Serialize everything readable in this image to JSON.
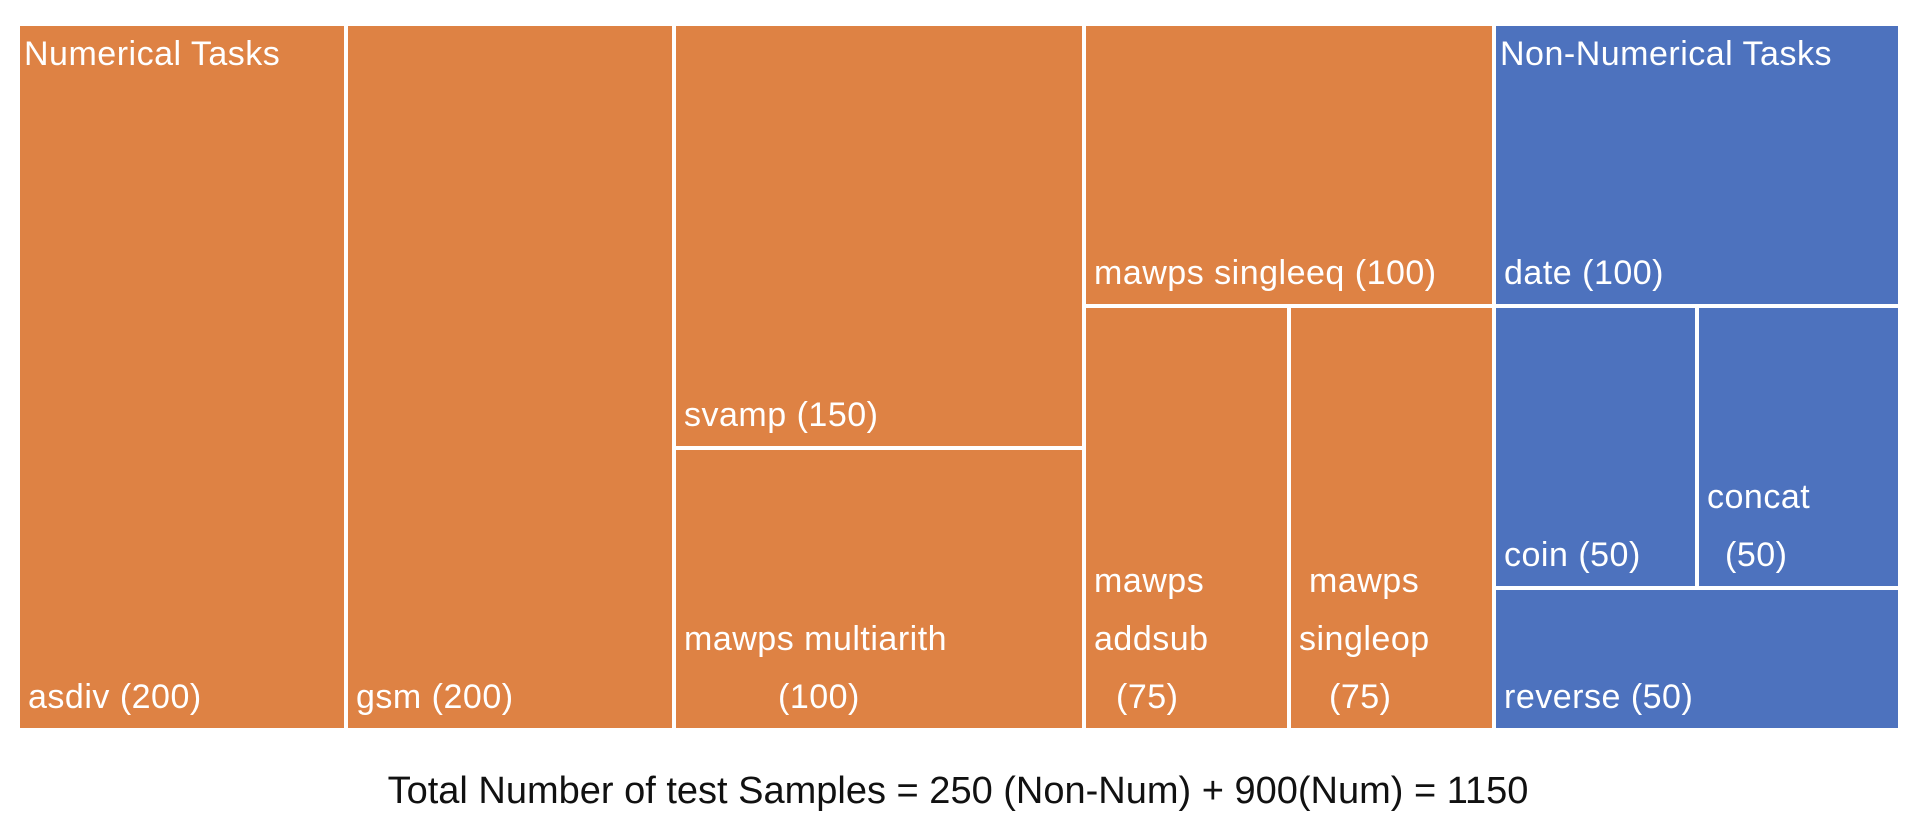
{
  "chart_data": {
    "type": "treemap",
    "groups": [
      {
        "name": "Numerical Tasks",
        "color": "#DE8244",
        "items": [
          "asdiv",
          "gsm",
          "svamp",
          "mawps multiarith",
          "mawps singleeq",
          "mawps addsub",
          "mawps singleop"
        ]
      },
      {
        "name": "Non-Numerical Tasks",
        "color": "#4D72BE",
        "items": [
          "date",
          "coin",
          "concat",
          "reverse"
        ]
      }
    ],
    "items": [
      {
        "name": "asdiv",
        "value": 200,
        "group": "Numerical Tasks",
        "label": [
          "asdiv (200)"
        ]
      },
      {
        "name": "gsm",
        "value": 200,
        "group": "Numerical Tasks",
        "label": [
          "gsm (200)"
        ]
      },
      {
        "name": "svamp",
        "value": 150,
        "group": "Numerical Tasks",
        "label": [
          "svamp (150)"
        ]
      },
      {
        "name": "mawps multiarith",
        "value": 100,
        "group": "Numerical Tasks",
        "label": [
          "mawps multiarith",
          "(100)"
        ]
      },
      {
        "name": "mawps singleeq",
        "value": 100,
        "group": "Numerical Tasks",
        "label": [
          "mawps singleeq (100)"
        ]
      },
      {
        "name": "mawps addsub",
        "value": 75,
        "group": "Numerical Tasks",
        "label": [
          "mawps",
          "addsub",
          "(75)"
        ]
      },
      {
        "name": "mawps singleop",
        "value": 75,
        "group": "Numerical Tasks",
        "label": [
          "mawps",
          "singleop",
          "(75)"
        ]
      },
      {
        "name": "date",
        "value": 100,
        "group": "Non-Numerical Tasks",
        "label": [
          "date (100)"
        ]
      },
      {
        "name": "coin",
        "value": 50,
        "group": "Non-Numerical Tasks",
        "label": [
          "coin (50)"
        ]
      },
      {
        "name": "concat",
        "value": 50,
        "group": "Non-Numerical Tasks",
        "label": [
          "concat",
          "(50)"
        ]
      },
      {
        "name": "reverse",
        "value": 50,
        "group": "Non-Numerical Tasks",
        "label": [
          "reverse (50)"
        ]
      }
    ],
    "footer": "Total Number of test Samples = 250 (Non-Num) + 900(Num) = 1150"
  }
}
